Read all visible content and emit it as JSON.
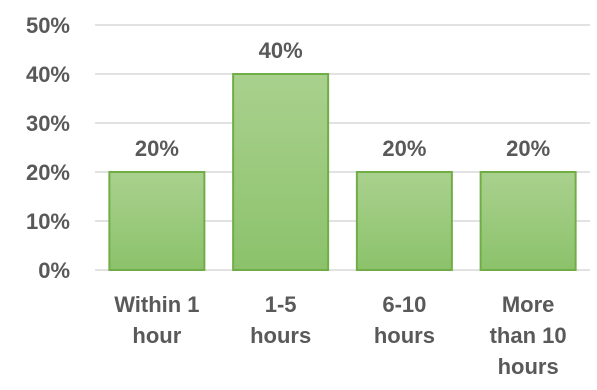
{
  "chart_data": {
    "type": "bar",
    "title": "",
    "xlabel": "",
    "ylabel": "",
    "categories": [
      [
        "Within 1",
        "hour"
      ],
      [
        "1-5",
        "hours"
      ],
      [
        "6-10",
        "hours"
      ],
      [
        "More",
        "than 10",
        "hours"
      ]
    ],
    "values": [
      20,
      40,
      20,
      20
    ],
    "data_labels": [
      "20%",
      "40%",
      "20%",
      "20%"
    ],
    "ylim": [
      0,
      50
    ],
    "yticks": [
      0,
      10,
      20,
      30,
      40,
      50
    ],
    "ytick_labels": [
      "0%",
      "10%",
      "20%",
      "30%",
      "40%",
      "50%"
    ],
    "grid": true,
    "legend": "none",
    "colors": {
      "bar_top": "#a9d18e",
      "bar_bottom": "#8cc26b",
      "bar_border": "#70ad47",
      "grid": "#d9d9d9",
      "text": "#595959"
    }
  }
}
